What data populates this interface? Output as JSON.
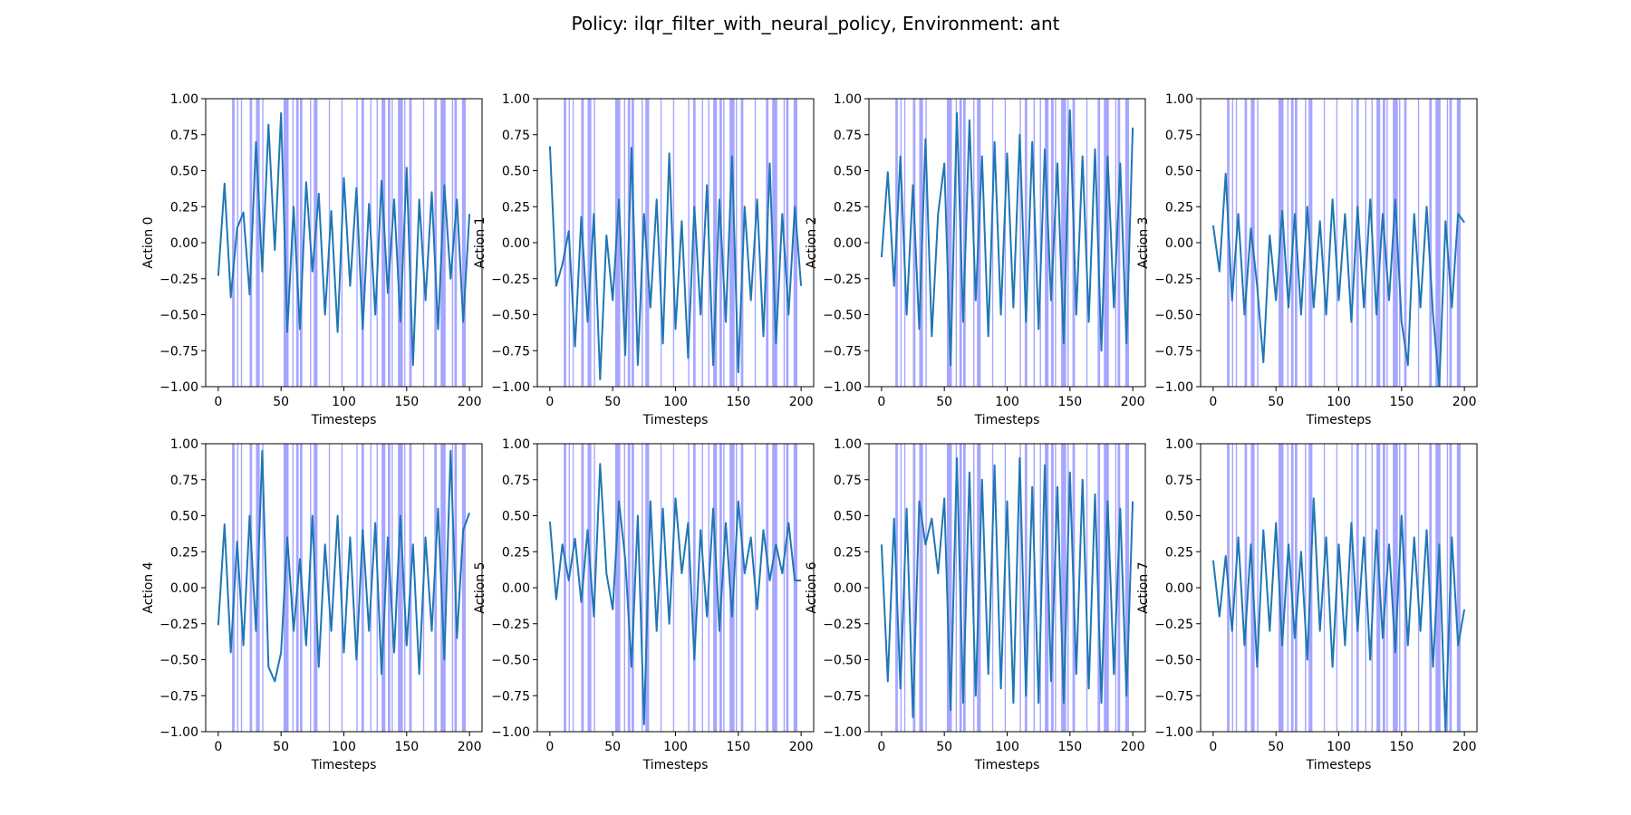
{
  "suptitle": "Policy: ilqr_filter_with_neural_policy, Environment: ant",
  "colors": {
    "line": "#1f77b4",
    "span": "#0000ff",
    "axes": "#000000"
  },
  "chart_data": [
    {
      "type": "line",
      "xlabel": "Timesteps",
      "ylabel": "Action 0",
      "xlim": [
        -10,
        210
      ],
      "ylim": [
        -1.0,
        1.0
      ],
      "xticks": [
        "0",
        "50",
        "100",
        "150",
        "200"
      ],
      "yticks": [
        "−1.00",
        "−0.75",
        "−0.50",
        "−0.25",
        "0.00",
        "0.25",
        "0.50",
        "0.75",
        "1.00"
      ],
      "x": [
        0,
        5,
        10,
        15,
        20,
        25,
        30,
        35,
        40,
        45,
        50,
        55,
        60,
        65,
        70,
        75,
        80,
        85,
        90,
        95,
        100,
        105,
        110,
        115,
        120,
        125,
        130,
        135,
        140,
        145,
        150,
        155,
        160,
        165,
        170,
        175,
        180,
        185,
        190,
        195,
        200
      ],
      "y": [
        -0.23,
        0.41,
        -0.38,
        0.1,
        0.21,
        -0.36,
        0.7,
        -0.2,
        0.82,
        -0.05,
        0.9,
        -0.62,
        0.25,
        -0.6,
        0.42,
        -0.2,
        0.34,
        -0.5,
        0.22,
        -0.62,
        0.45,
        -0.3,
        0.38,
        -0.6,
        0.27,
        -0.5,
        0.43,
        -0.35,
        0.3,
        -0.55,
        0.52,
        -0.85,
        0.3,
        -0.4,
        0.35,
        -0.6,
        0.4,
        -0.25,
        0.3,
        -0.55,
        0.2
      ]
    },
    {
      "type": "line",
      "xlabel": "Timesteps",
      "ylabel": "Action 1",
      "xlim": [
        -10,
        210
      ],
      "ylim": [
        -1.0,
        1.0
      ],
      "xticks": [
        "0",
        "50",
        "100",
        "150",
        "200"
      ],
      "yticks": [
        "−1.00",
        "−0.75",
        "−0.50",
        "−0.25",
        "0.00",
        "0.25",
        "0.50",
        "0.75",
        "1.00"
      ],
      "x": [
        0,
        5,
        10,
        15,
        20,
        25,
        30,
        35,
        40,
        45,
        50,
        55,
        60,
        65,
        70,
        75,
        80,
        85,
        90,
        95,
        100,
        105,
        110,
        115,
        120,
        125,
        130,
        135,
        140,
        145,
        150,
        155,
        160,
        165,
        170,
        175,
        180,
        185,
        190,
        195,
        200
      ],
      "y": [
        0.67,
        -0.3,
        -0.15,
        0.08,
        -0.72,
        0.18,
        -0.55,
        0.2,
        -0.95,
        0.05,
        -0.4,
        0.3,
        -0.78,
        0.66,
        -0.85,
        0.2,
        -0.45,
        0.3,
        -0.7,
        0.62,
        -0.6,
        0.15,
        -0.8,
        0.25,
        -0.5,
        0.4,
        -0.85,
        0.3,
        -0.55,
        0.6,
        -0.9,
        0.25,
        -0.4,
        0.3,
        -0.65,
        0.55,
        -0.7,
        0.2,
        -0.5,
        0.25,
        -0.3
      ]
    },
    {
      "type": "line",
      "xlabel": "Timesteps",
      "ylabel": "Action 2",
      "xlim": [
        -10,
        210
      ],
      "ylim": [
        -1.0,
        1.0
      ],
      "xticks": [
        "0",
        "50",
        "100",
        "150",
        "200"
      ],
      "yticks": [
        "−1.00",
        "−0.75",
        "−0.50",
        "−0.25",
        "0.00",
        "0.25",
        "0.50",
        "0.75",
        "1.00"
      ],
      "x": [
        0,
        5,
        10,
        15,
        20,
        25,
        30,
        35,
        40,
        45,
        50,
        55,
        60,
        65,
        70,
        75,
        80,
        85,
        90,
        95,
        100,
        105,
        110,
        115,
        120,
        125,
        130,
        135,
        140,
        145,
        150,
        155,
        160,
        165,
        170,
        175,
        180,
        185,
        190,
        195,
        200
      ],
      "y": [
        -0.1,
        0.49,
        -0.3,
        0.6,
        -0.5,
        0.4,
        -0.6,
        0.72,
        -0.65,
        0.2,
        0.55,
        -0.85,
        0.9,
        -0.55,
        0.85,
        -0.4,
        0.6,
        -0.65,
        0.7,
        -0.5,
        0.62,
        -0.45,
        0.75,
        -0.55,
        0.7,
        -0.6,
        0.65,
        -0.4,
        0.55,
        -0.7,
        0.92,
        -0.5,
        0.6,
        -0.55,
        0.65,
        -0.75,
        0.6,
        -0.45,
        0.55,
        -0.7,
        0.8
      ]
    },
    {
      "type": "line",
      "xlabel": "Timesteps",
      "ylabel": "Action 3",
      "xlim": [
        -10,
        210
      ],
      "ylim": [
        -1.0,
        1.0
      ],
      "xticks": [
        "0",
        "50",
        "100",
        "150",
        "200"
      ],
      "yticks": [
        "−1.00",
        "−0.75",
        "−0.50",
        "−0.25",
        "0.00",
        "0.25",
        "0.50",
        "0.75",
        "1.00"
      ],
      "x": [
        0,
        5,
        10,
        15,
        20,
        25,
        30,
        35,
        40,
        45,
        50,
        55,
        60,
        65,
        70,
        75,
        80,
        85,
        90,
        95,
        100,
        105,
        110,
        115,
        120,
        125,
        130,
        135,
        140,
        145,
        150,
        155,
        160,
        165,
        170,
        175,
        180,
        185,
        190,
        195,
        200
      ],
      "y": [
        0.12,
        -0.2,
        0.48,
        -0.4,
        0.2,
        -0.5,
        0.1,
        -0.3,
        -0.83,
        0.05,
        -0.4,
        0.22,
        -0.45,
        0.2,
        -0.5,
        0.25,
        -0.45,
        0.15,
        -0.5,
        0.3,
        -0.4,
        0.2,
        -0.55,
        0.25,
        -0.45,
        0.3,
        -0.5,
        0.2,
        -0.4,
        0.3,
        -0.55,
        -0.85,
        0.2,
        -0.45,
        0.25,
        -0.5,
        -1.0,
        0.15,
        -0.45,
        0.2,
        0.14
      ]
    },
    {
      "type": "line",
      "xlabel": "Timesteps",
      "ylabel": "Action 4",
      "xlim": [
        -10,
        210
      ],
      "ylim": [
        -1.0,
        1.0
      ],
      "xticks": [
        "0",
        "50",
        "100",
        "150",
        "200"
      ],
      "yticks": [
        "−1.00",
        "−0.75",
        "−0.50",
        "−0.25",
        "0.00",
        "0.25",
        "0.50",
        "0.75",
        "1.00"
      ],
      "x": [
        0,
        5,
        10,
        15,
        20,
        25,
        30,
        35,
        40,
        45,
        50,
        55,
        60,
        65,
        70,
        75,
        80,
        85,
        90,
        95,
        100,
        105,
        110,
        115,
        120,
        125,
        130,
        135,
        140,
        145,
        150,
        155,
        160,
        165,
        170,
        175,
        180,
        185,
        190,
        195,
        200
      ],
      "y": [
        -0.26,
        0.44,
        -0.45,
        0.32,
        -0.4,
        0.5,
        -0.3,
        0.95,
        -0.55,
        -0.65,
        -0.45,
        0.35,
        -0.3,
        0.2,
        -0.4,
        0.5,
        -0.55,
        0.3,
        -0.3,
        0.5,
        -0.45,
        0.35,
        -0.5,
        0.4,
        -0.3,
        0.45,
        -0.6,
        0.35,
        -0.45,
        0.5,
        -0.4,
        0.3,
        -0.6,
        0.35,
        -0.3,
        0.55,
        -0.5,
        0.95,
        -0.35,
        0.4,
        0.52
      ]
    },
    {
      "type": "line",
      "xlabel": "Timesteps",
      "ylabel": "Action 5",
      "xlim": [
        -10,
        210
      ],
      "ylim": [
        -1.0,
        1.0
      ],
      "xticks": [
        "0",
        "50",
        "100",
        "150",
        "200"
      ],
      "yticks": [
        "−1.00",
        "−0.75",
        "−0.50",
        "−0.25",
        "0.00",
        "0.25",
        "0.50",
        "0.75",
        "1.00"
      ],
      "x": [
        0,
        5,
        10,
        15,
        20,
        25,
        30,
        35,
        40,
        45,
        50,
        55,
        60,
        65,
        70,
        75,
        80,
        85,
        90,
        95,
        100,
        105,
        110,
        115,
        120,
        125,
        130,
        135,
        140,
        145,
        150,
        155,
        160,
        165,
        170,
        175,
        180,
        185,
        190,
        195,
        200
      ],
      "y": [
        0.46,
        -0.08,
        0.3,
        0.05,
        0.34,
        -0.1,
        0.4,
        -0.2,
        0.86,
        0.1,
        -0.15,
        0.6,
        0.2,
        -0.55,
        0.5,
        -0.95,
        0.6,
        -0.3,
        0.55,
        -0.25,
        0.62,
        0.1,
        0.45,
        -0.5,
        0.4,
        -0.2,
        0.55,
        -0.3,
        0.45,
        -0.2,
        0.6,
        0.1,
        0.35,
        -0.15,
        0.4,
        0.05,
        0.3,
        0.1,
        0.45,
        0.05,
        0.05
      ]
    },
    {
      "type": "line",
      "xlabel": "Timesteps",
      "ylabel": "Action 6",
      "xlim": [
        -10,
        210
      ],
      "ylim": [
        -1.0,
        1.0
      ],
      "xticks": [
        "0",
        "50",
        "100",
        "150",
        "200"
      ],
      "yticks": [
        "−1.00",
        "−0.75",
        "−0.50",
        "−0.25",
        "0.00",
        "0.25",
        "0.50",
        "0.75",
        "1.00"
      ],
      "x": [
        0,
        5,
        10,
        15,
        20,
        25,
        30,
        35,
        40,
        45,
        50,
        55,
        60,
        65,
        70,
        75,
        80,
        85,
        90,
        95,
        100,
        105,
        110,
        115,
        120,
        125,
        130,
        135,
        140,
        145,
        150,
        155,
        160,
        165,
        170,
        175,
        180,
        185,
        190,
        195,
        200
      ],
      "y": [
        0.3,
        -0.65,
        0.48,
        -0.7,
        0.55,
        -0.9,
        0.6,
        0.3,
        0.48,
        0.1,
        0.62,
        -0.85,
        0.9,
        -0.8,
        0.8,
        -0.75,
        0.75,
        -0.6,
        0.85,
        -0.7,
        0.6,
        -0.8,
        0.9,
        -0.75,
        0.7,
        -0.8,
        0.85,
        -0.65,
        0.7,
        -0.8,
        0.8,
        -0.6,
        0.75,
        -0.7,
        0.65,
        -0.8,
        0.6,
        -0.6,
        0.55,
        -0.75,
        0.6
      ]
    },
    {
      "type": "line",
      "xlabel": "Timesteps",
      "ylabel": "Action 7",
      "xlim": [
        -10,
        210
      ],
      "ylim": [
        -1.0,
        1.0
      ],
      "xticks": [
        "0",
        "50",
        "100",
        "150",
        "200"
      ],
      "yticks": [
        "−1.00",
        "−0.75",
        "−0.50",
        "−0.25",
        "0.00",
        "0.25",
        "0.50",
        "0.75",
        "1.00"
      ],
      "x": [
        0,
        5,
        10,
        15,
        20,
        25,
        30,
        35,
        40,
        45,
        50,
        55,
        60,
        65,
        70,
        75,
        80,
        85,
        90,
        95,
        100,
        105,
        110,
        115,
        120,
        125,
        130,
        135,
        140,
        145,
        150,
        155,
        160,
        165,
        170,
        175,
        180,
        185,
        190,
        195,
        200
      ],
      "y": [
        0.19,
        -0.2,
        0.22,
        -0.3,
        0.35,
        -0.4,
        0.3,
        -0.55,
        0.4,
        -0.3,
        0.45,
        -0.4,
        0.3,
        -0.35,
        0.25,
        -0.5,
        0.62,
        -0.3,
        0.35,
        -0.55,
        0.3,
        -0.4,
        0.45,
        -0.3,
        0.35,
        -0.5,
        0.4,
        -0.35,
        0.3,
        -0.45,
        0.5,
        -0.4,
        0.35,
        -0.3,
        0.4,
        -0.55,
        0.3,
        -1.0,
        0.35,
        -0.4,
        -0.15
      ]
    }
  ],
  "highlight_spans": [
    [
      11,
      13
    ],
    [
      15,
      16
    ],
    [
      18,
      19
    ],
    [
      25,
      27
    ],
    [
      30,
      33
    ],
    [
      35,
      36
    ],
    [
      52,
      56
    ],
    [
      59,
      60
    ],
    [
      62,
      64
    ],
    [
      65,
      67
    ],
    [
      73,
      74
    ],
    [
      76,
      79
    ],
    [
      88,
      89
    ],
    [
      98,
      99
    ],
    [
      110,
      111
    ],
    [
      114,
      116
    ],
    [
      121,
      122
    ],
    [
      126,
      127
    ],
    [
      130,
      133
    ],
    [
      135,
      137
    ],
    [
      138,
      139
    ],
    [
      143,
      147
    ],
    [
      148,
      149
    ],
    [
      152,
      154
    ],
    [
      163,
      164
    ],
    [
      172,
      174
    ],
    [
      177,
      181
    ],
    [
      186,
      187
    ],
    [
      188,
      190
    ],
    [
      194,
      197
    ]
  ]
}
